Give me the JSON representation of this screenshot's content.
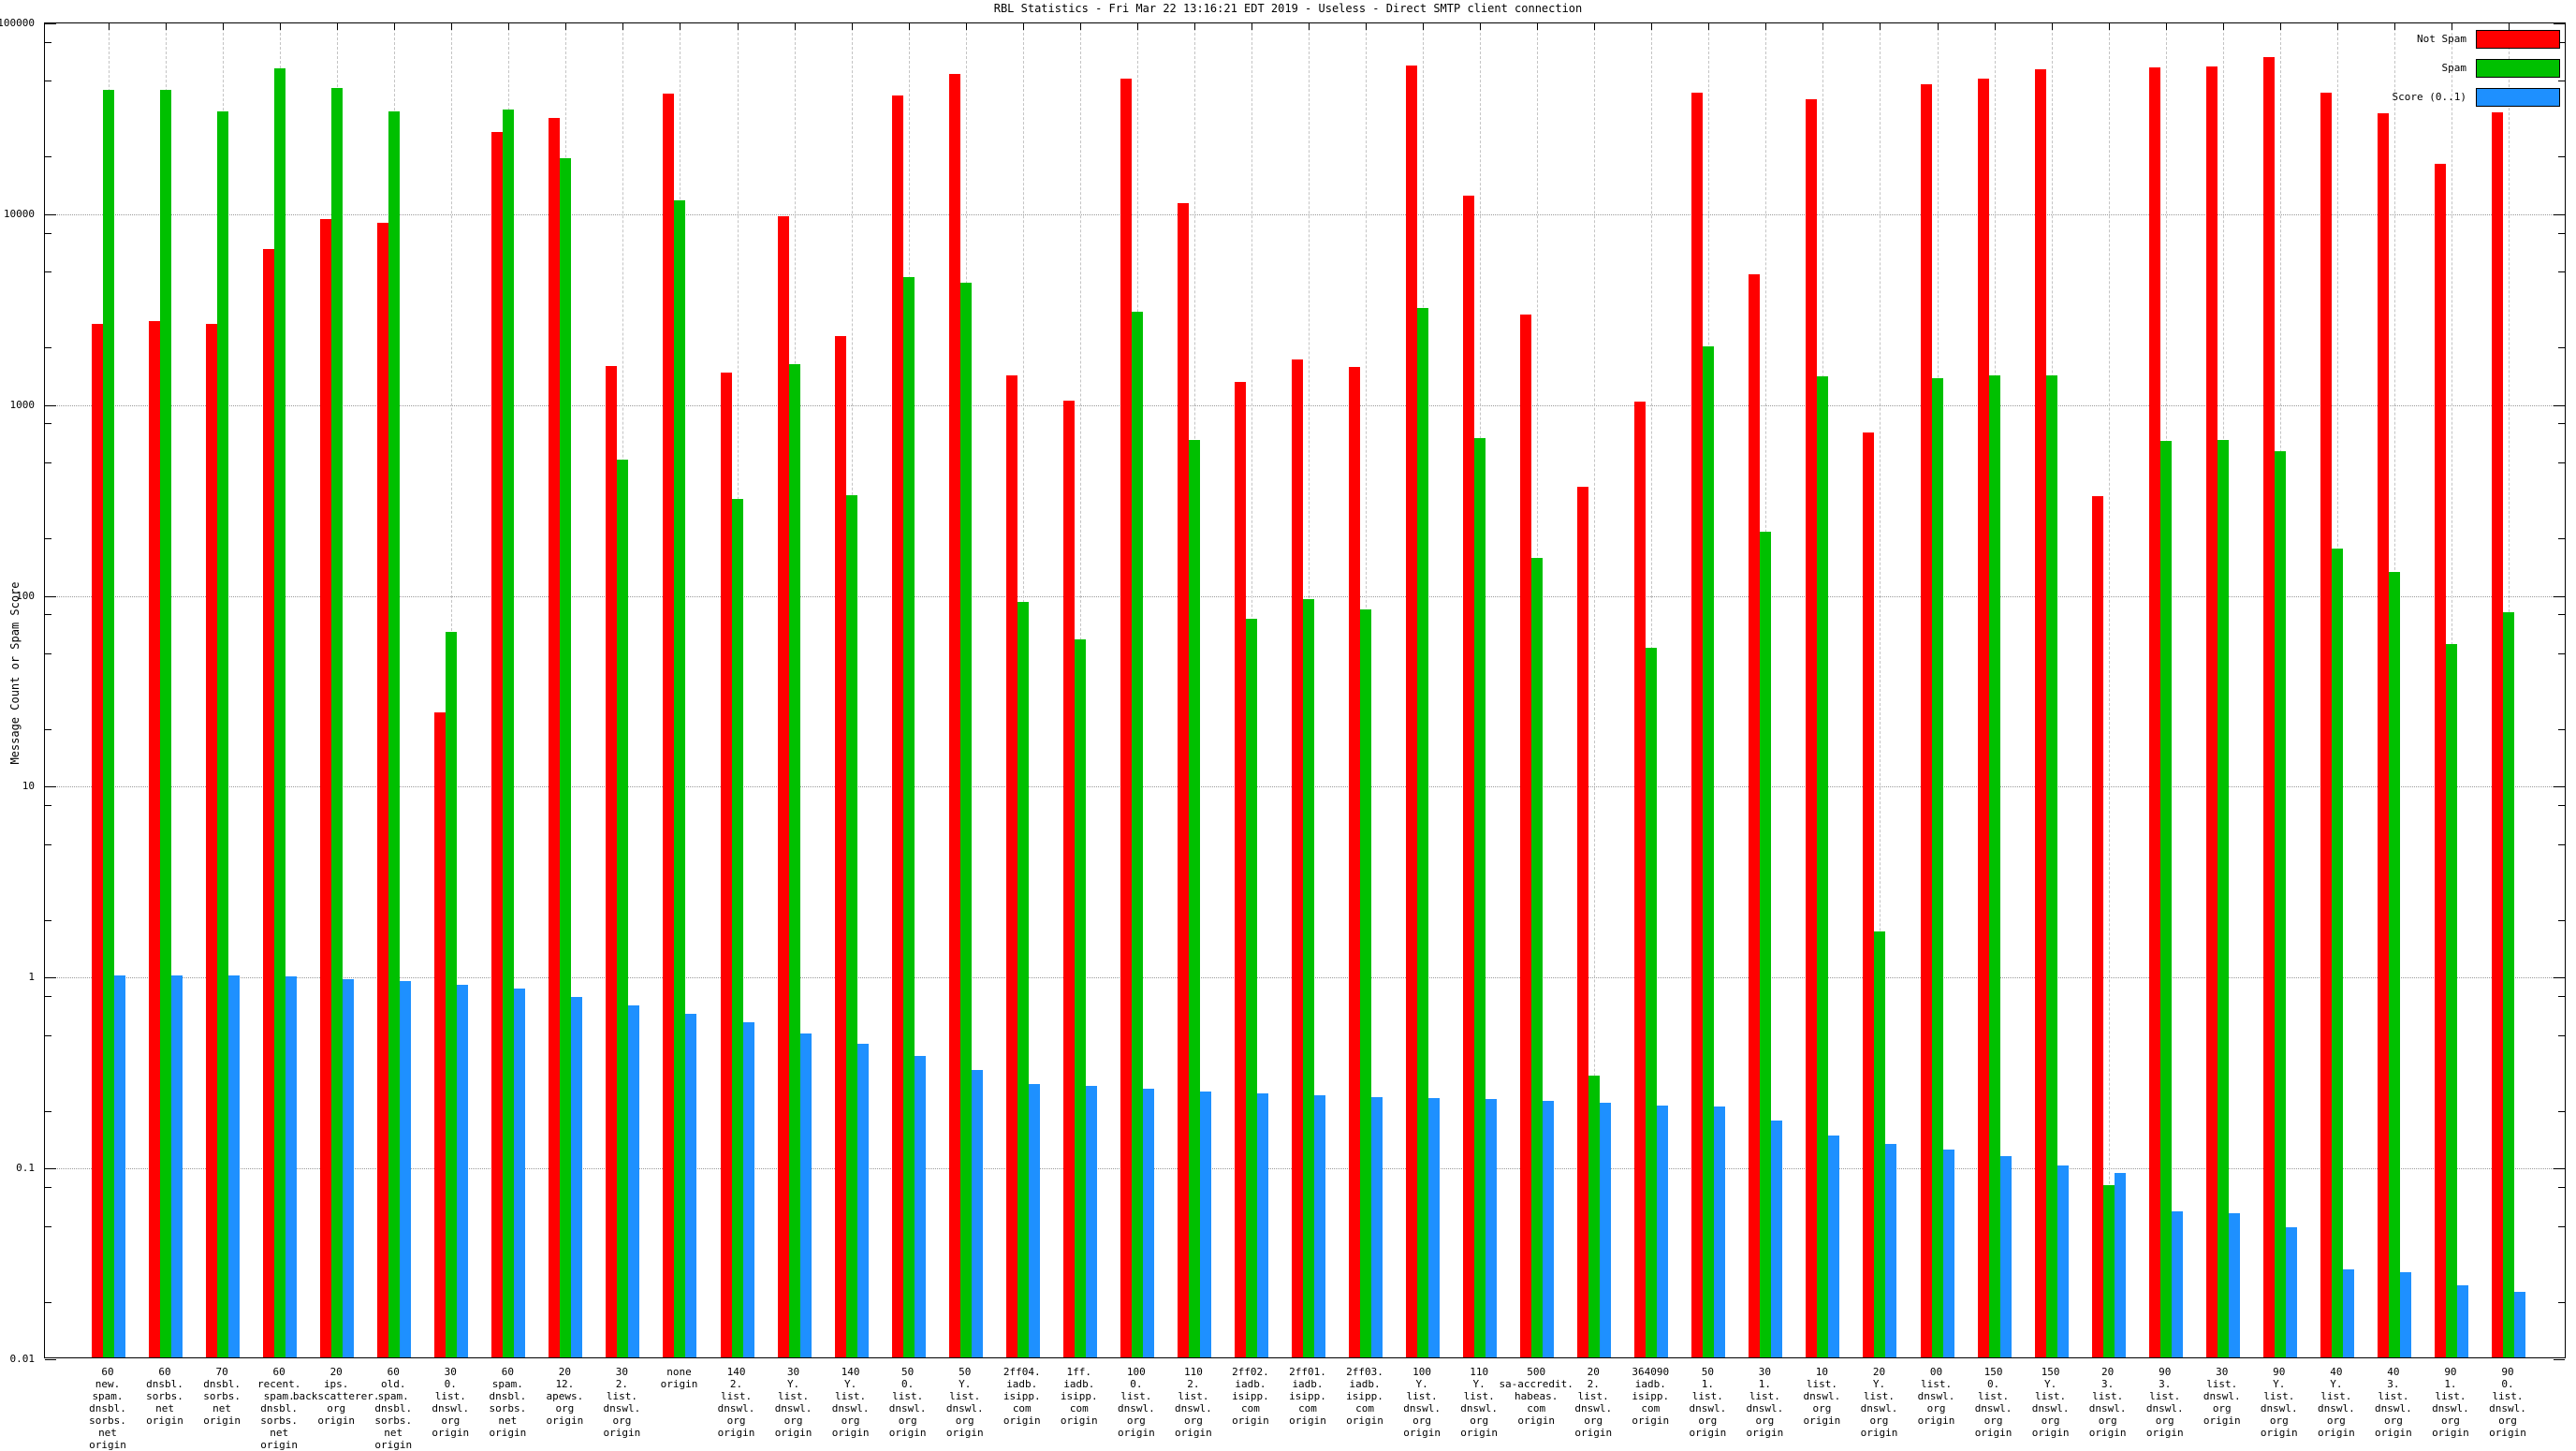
{
  "chart_data": {
    "type": "bar",
    "title": "RBL Statistics - Fri Mar 22 13:16:21 EDT 2019 - Useless - Direct SMTP client connection",
    "ylabel": "Message Count or Spam Score",
    "xlabel": "",
    "y_scale": "log",
    "ylim": [
      0.01,
      100000
    ],
    "grid": "on",
    "legend_position": "top-right",
    "y_ticks": [
      "100000",
      "10000",
      "1000",
      "100",
      "10",
      "1",
      "0.1",
      "0.01"
    ],
    "series_names": [
      "Not Spam",
      "Spam",
      "Score (0..1)"
    ],
    "colors": {
      "not_spam": "#ff0000",
      "spam": "#00c000",
      "score": "#1e90ff"
    },
    "legend": [
      {
        "label": "Not Spam",
        "color": "#ff0000"
      },
      {
        "label": "Spam",
        "color": "#00c000"
      },
      {
        "label": "Score (0..1)",
        "color": "#1e90ff"
      }
    ],
    "groups": [
      {
        "lines": [
          "60",
          "new.",
          "spam.",
          "dnsbl.",
          "sorbs.",
          "net",
          "origin"
        ],
        "not_spam": 2600,
        "spam": 44000,
        "score": 1.0
      },
      {
        "lines": [
          "60",
          "dnsbl.",
          "sorbs.",
          "net",
          "origin"
        ],
        "not_spam": 2700,
        "spam": 44000,
        "score": 1.0
      },
      {
        "lines": [
          "70",
          "dnsbl.",
          "sorbs.",
          "net",
          "origin"
        ],
        "not_spam": 2600,
        "spam": 34000,
        "score": 1.0
      },
      {
        "lines": [
          "60",
          "recent.",
          "spam.",
          "dnsbl.",
          "sorbs.",
          "net",
          "origin"
        ],
        "not_spam": 6400,
        "spam": 57000,
        "score": 0.99
      },
      {
        "lines": [
          "20",
          "ips.",
          "backscatterer.",
          "org",
          "origin"
        ],
        "not_spam": 9200,
        "spam": 45000,
        "score": 0.96
      },
      {
        "lines": [
          "60",
          "old.",
          "spam.",
          "dnsbl.",
          "sorbs.",
          "net",
          "origin"
        ],
        "not_spam": 8800,
        "spam": 34000,
        "score": 0.94
      },
      {
        "lines": [
          "30",
          "0.",
          "list.",
          "dnswl.",
          "org",
          "origin"
        ],
        "not_spam": 24,
        "spam": 63,
        "score": 0.9
      },
      {
        "lines": [
          "60",
          "spam.",
          "dnsbl.",
          "sorbs.",
          "net",
          "origin"
        ],
        "not_spam": 26400,
        "spam": 34500,
        "score": 0.86
      },
      {
        "lines": [
          "20",
          "12.",
          "apews.",
          "org",
          "origin"
        ],
        "not_spam": 31200,
        "spam": 19200,
        "score": 0.77
      },
      {
        "lines": [
          "30",
          "2.",
          "list.",
          "dnswl.",
          "org",
          "origin"
        ],
        "not_spam": 1560,
        "spam": 505,
        "score": 0.7
      },
      {
        "lines": [
          "none",
          "origin"
        ],
        "not_spam": 42000,
        "spam": 11600,
        "score": 0.63
      },
      {
        "lines": [
          "140",
          "2.",
          "list.",
          "dnswl.",
          "org",
          "origin"
        ],
        "not_spam": 1450,
        "spam": 316,
        "score": 0.57
      },
      {
        "lines": [
          "30",
          "Y.",
          "list.",
          "dnswl.",
          "org",
          "origin"
        ],
        "not_spam": 9500,
        "spam": 1600,
        "score": 0.5
      },
      {
        "lines": [
          "140",
          "Y.",
          "list.",
          "dnswl.",
          "org",
          "origin"
        ],
        "not_spam": 2260,
        "spam": 330,
        "score": 0.44
      },
      {
        "lines": [
          "50",
          "0.",
          "list.",
          "dnswl.",
          "org",
          "origin"
        ],
        "not_spam": 41000,
        "spam": 4600,
        "score": 0.38
      },
      {
        "lines": [
          "50",
          "Y.",
          "list.",
          "dnswl.",
          "org",
          "origin"
        ],
        "not_spam": 53000,
        "spam": 4300,
        "score": 0.32
      },
      {
        "lines": [
          "2ff04.",
          "iadb.",
          "isipp.",
          "com",
          "origin"
        ],
        "not_spam": 1400,
        "spam": 91,
        "score": 0.27
      },
      {
        "lines": [
          "1ff.",
          "iadb.",
          "isipp.",
          "com",
          "origin"
        ],
        "not_spam": 1030,
        "spam": 58,
        "score": 0.265
      },
      {
        "lines": [
          "100",
          "0.",
          "list.",
          "dnswl.",
          "org",
          "origin"
        ],
        "not_spam": 50000,
        "spam": 3000,
        "score": 0.255
      },
      {
        "lines": [
          "110",
          "2.",
          "list.",
          "dnswl.",
          "org",
          "origin"
        ],
        "not_spam": 11200,
        "spam": 640,
        "score": 0.247
      },
      {
        "lines": [
          "2ff02.",
          "iadb.",
          "isipp.",
          "com",
          "origin"
        ],
        "not_spam": 1290,
        "spam": 74,
        "score": 0.242
      },
      {
        "lines": [
          "2ff01.",
          "iadb.",
          "isipp.",
          "com",
          "origin"
        ],
        "not_spam": 1700,
        "spam": 94,
        "score": 0.237
      },
      {
        "lines": [
          "2ff03.",
          "iadb.",
          "isipp.",
          "com",
          "origin"
        ],
        "not_spam": 1550,
        "spam": 83,
        "score": 0.232
      },
      {
        "lines": [
          "100",
          "Y.",
          "list.",
          "dnswl.",
          "org",
          "origin"
        ],
        "not_spam": 59000,
        "spam": 3170,
        "score": 0.228
      },
      {
        "lines": [
          "110",
          "Y.",
          "list.",
          "dnswl.",
          "org",
          "origin"
        ],
        "not_spam": 12300,
        "spam": 660,
        "score": 0.225
      },
      {
        "lines": [
          "500",
          "sa-accredit.",
          "habeas.",
          "com",
          "origin"
        ],
        "not_spam": 2900,
        "spam": 155,
        "score": 0.222
      },
      {
        "lines": [
          "20",
          "2.",
          "list.",
          "dnswl.",
          "org",
          "origin"
        ],
        "not_spam": 365,
        "spam": 0.3,
        "score": 0.215
      },
      {
        "lines": [
          "364090",
          "iadb.",
          "isipp.",
          "com",
          "origin"
        ],
        "not_spam": 1020,
        "spam": 52,
        "score": 0.208
      },
      {
        "lines": [
          "50",
          "1.",
          "list.",
          "dnswl.",
          "org",
          "origin"
        ],
        "not_spam": 42500,
        "spam": 1980,
        "score": 0.206
      },
      {
        "lines": [
          "30",
          "1.",
          "list.",
          "dnswl.",
          "org",
          "origin"
        ],
        "not_spam": 4750,
        "spam": 213,
        "score": 0.175
      },
      {
        "lines": [
          "10",
          "list.",
          "dnswl.",
          "org",
          "origin"
        ],
        "not_spam": 39000,
        "spam": 1380,
        "score": 0.145
      },
      {
        "lines": [
          "20",
          "Y.",
          "list.",
          "dnswl.",
          "org",
          "origin"
        ],
        "not_spam": 700,
        "spam": 1.7,
        "score": 0.131
      },
      {
        "lines": [
          "00",
          "list.",
          "dnswl.",
          "org",
          "origin"
        ],
        "not_spam": 47000,
        "spam": 1360,
        "score": 0.123
      },
      {
        "lines": [
          "150",
          "0.",
          "list.",
          "dnswl.",
          "org",
          "origin"
        ],
        "not_spam": 50000,
        "spam": 1400,
        "score": 0.113
      },
      {
        "lines": [
          "150",
          "Y.",
          "list.",
          "dnswl.",
          "org",
          "origin"
        ],
        "not_spam": 56000,
        "spam": 1400,
        "score": 0.101
      },
      {
        "lines": [
          "20",
          "3.",
          "list.",
          "dnswl.",
          "org",
          "origin"
        ],
        "not_spam": 325,
        "spam": 0.08,
        "score": 0.093
      },
      {
        "lines": [
          "90",
          "3.",
          "list.",
          "dnswl.",
          "org",
          "origin"
        ],
        "not_spam": 57500,
        "spam": 637,
        "score": 0.058
      },
      {
        "lines": [
          "30",
          "list.",
          "dnswl.",
          "org",
          "origin"
        ],
        "not_spam": 58000,
        "spam": 640,
        "score": 0.057
      },
      {
        "lines": [
          "90",
          "Y.",
          "list.",
          "dnswl.",
          "org",
          "origin"
        ],
        "not_spam": 65000,
        "spam": 560,
        "score": 0.048
      },
      {
        "lines": [
          "40",
          "Y.",
          "list.",
          "dnswl.",
          "org",
          "origin"
        ],
        "not_spam": 42500,
        "spam": 173,
        "score": 0.029
      },
      {
        "lines": [
          "40",
          "3.",
          "list.",
          "dnswl.",
          "org",
          "origin"
        ],
        "not_spam": 33200,
        "spam": 131,
        "score": 0.028
      },
      {
        "lines": [
          "90",
          "1.",
          "list.",
          "dnswl.",
          "org",
          "origin"
        ],
        "not_spam": 18000,
        "spam": 55,
        "score": 0.024
      },
      {
        "lines": [
          "90",
          "0.",
          "list.",
          "dnswl.",
          "org",
          "origin"
        ],
        "not_spam": 33500,
        "spam": 80,
        "score": 0.022
      }
    ]
  }
}
